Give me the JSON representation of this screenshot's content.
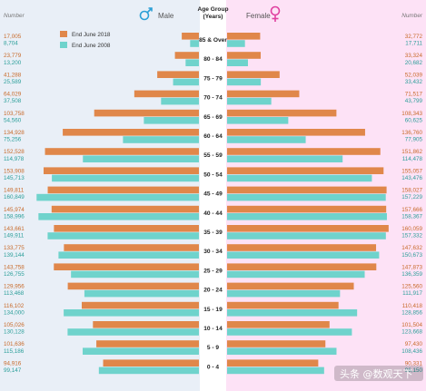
{
  "chart_data": {
    "type": "bar",
    "orientation": "population-pyramid",
    "header": {
      "number_left": "Number",
      "number_right": "Number",
      "male": "Male",
      "female": "Female",
      "age_group_line1": "Age Group",
      "age_group_line2": "(Years)"
    },
    "series": [
      {
        "name": "End June 2018",
        "color": "#e0874a"
      },
      {
        "name": "End June 2008",
        "color": "#6fd3cc"
      }
    ],
    "categories": [
      "85 & Over",
      "80 - 84",
      "75 - 79",
      "70 - 74",
      "65 - 69",
      "60 - 64",
      "55 - 59",
      "50 - 54",
      "45 - 49",
      "40 - 44",
      "35 - 39",
      "30 - 34",
      "25 - 29",
      "20 - 24",
      "15 - 19",
      "10 - 14",
      "5 - 9",
      "0 - 4"
    ],
    "male_2018": [
      17005,
      23779,
      41288,
      64029,
      103758,
      134928,
      152528,
      153908,
      149811,
      145974,
      143661,
      133775,
      143758,
      129956,
      116102,
      105026,
      101636,
      94916
    ],
    "male_2008": [
      8704,
      13200,
      25589,
      37508,
      54560,
      75256,
      114978,
      145713,
      160849,
      158996,
      149911,
      139144,
      126755,
      113468,
      134000,
      130128,
      115186,
      99147
    ],
    "female_2018": [
      32772,
      33324,
      52039,
      71517,
      108343,
      136760,
      151862,
      155057,
      158027,
      157666,
      160059,
      147632,
      147873,
      125560,
      110418,
      101504,
      97430,
      90331
    ],
    "female_2008": [
      17711,
      20682,
      33432,
      43799,
      60625,
      77905,
      114478,
      143476,
      157229,
      158367,
      157332,
      150673,
      136359,
      111917,
      128856,
      123668,
      108436,
      96150
    ],
    "male_2018_labels": [
      "17,005",
      "23,779",
      "41,288",
      "64,029",
      "103,758",
      "134,928",
      "152,528",
      "153,908",
      "149,811",
      "145,974",
      "143,661",
      "133,775",
      "143,758",
      "129,956",
      "116,102",
      "105,026",
      "101,636",
      "94,916"
    ],
    "male_2008_labels": [
      "8,704",
      "13,200",
      "25,589",
      "37,508",
      "54,560",
      "75,256",
      "114,978",
      "145,713",
      "160,849",
      "158,996",
      "149,911",
      "139,144",
      "126,755",
      "113,468",
      "134,000",
      "130,128",
      "115,186",
      "99,147"
    ],
    "female_2018_labels": [
      "32,772",
      "33,324",
      "52,039",
      "71,517",
      "108,343",
      "136,760",
      "151,862",
      "155,057",
      "158,027",
      "157,666",
      "160,059",
      "147,632",
      "147,873",
      "125,560",
      "110,418",
      "101,504",
      "97,430",
      "90,331"
    ],
    "female_2008_labels": [
      "17,711",
      "20,682",
      "33,432",
      "43,799",
      "60,625",
      "77,905",
      "114,478",
      "143,476",
      "157,229",
      "158,367",
      "157,332",
      "150,673",
      "136,359",
      "111,917",
      "128,856",
      "123,668",
      "108,436",
      "96,150"
    ],
    "max_value": 162000,
    "legend_position": "top-left",
    "colors": {
      "male_panel_bg": "#e9eff7",
      "female_panel_bg": "#fde2f6",
      "male_symbol": "#2a9fd6",
      "female_symbol": "#e040a0",
      "label_2018": "#c86a2a",
      "label_2008": "#2c9f9a"
    },
    "watermark": "头条 @数观天下"
  }
}
